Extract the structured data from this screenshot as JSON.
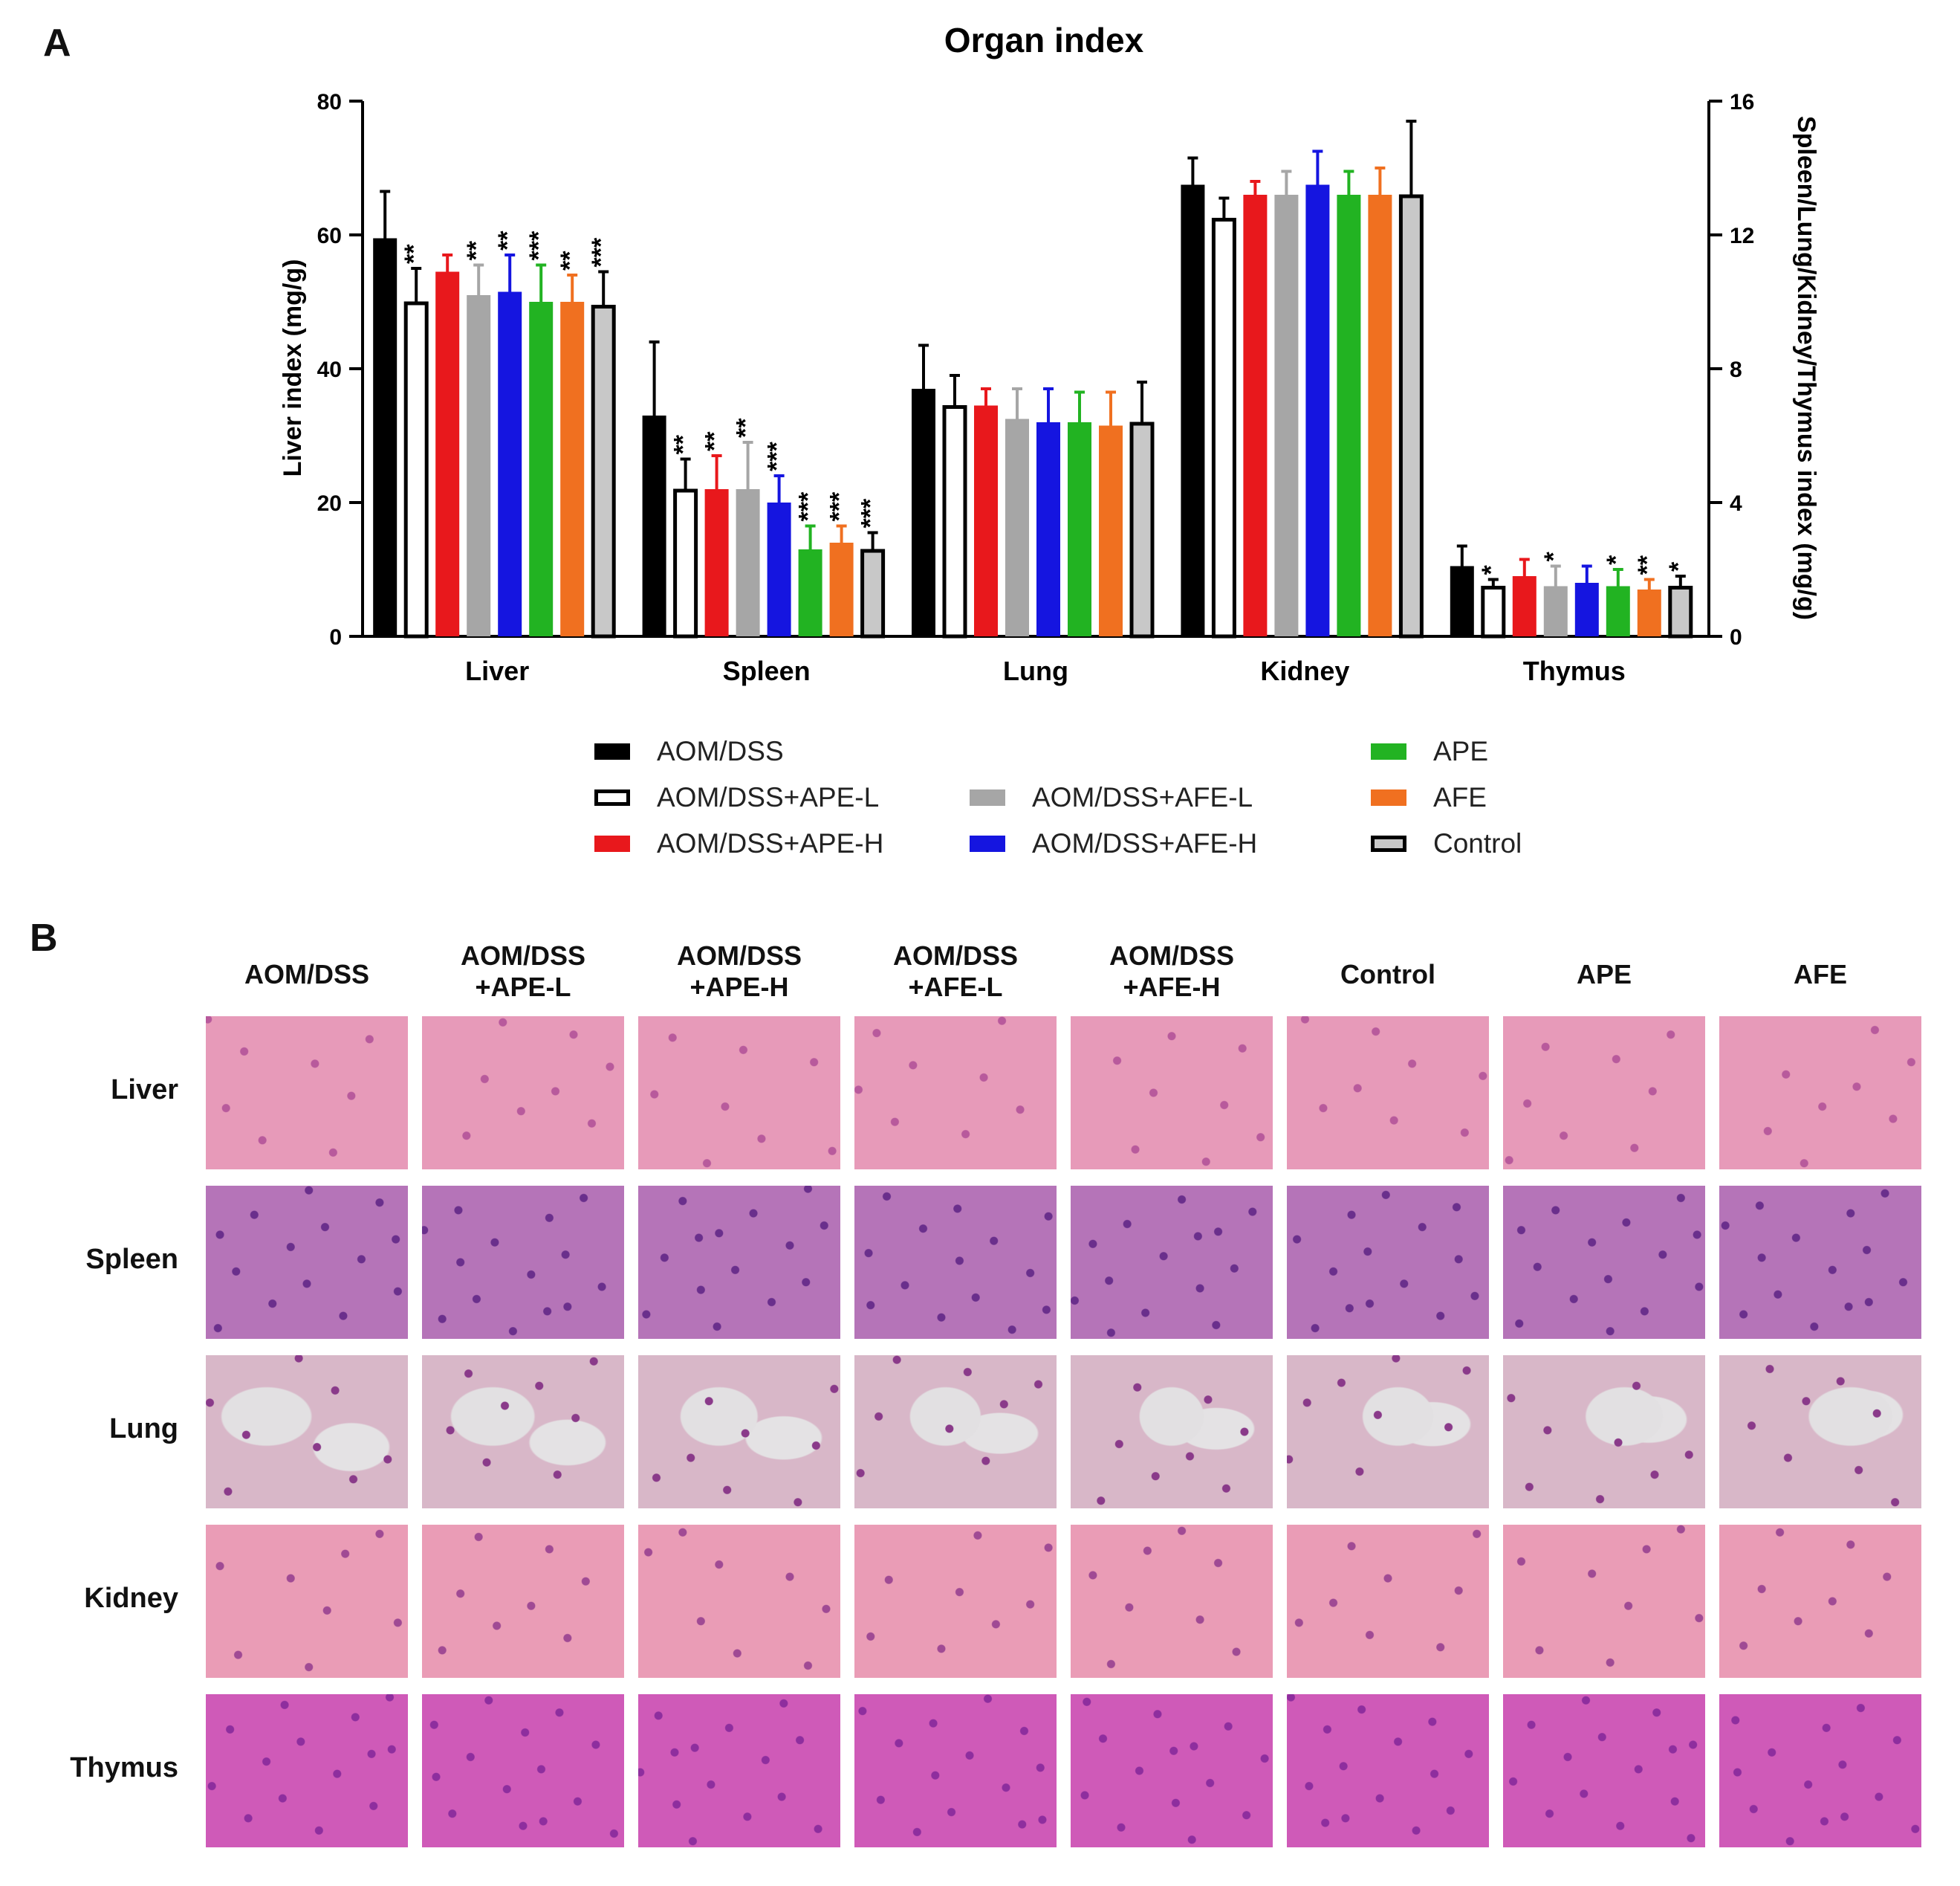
{
  "panel_a": {
    "letter": "A"
  },
  "panel_b": {
    "letter": "B",
    "columns": [
      "AOM/DSS",
      "AOM/DSS\n+APE-L",
      "AOM/DSS\n+APE-H",
      "AOM/DSS\n+AFE-L",
      "AOM/DSS\n+AFE-H",
      "Control",
      "APE",
      "AFE"
    ],
    "rows": [
      "Liver",
      "Spleen",
      "Lung",
      "Kidney",
      "Thymus"
    ],
    "tissue_colors": {
      "Liver": "#e79ab9",
      "Spleen": "#b574b8",
      "Lung": "#d8b7c8",
      "Kidney": "#ea9cb6",
      "Thymus": "#cf5ab8"
    },
    "nuclei_colors": {
      "Liver": "#b85a9c",
      "Spleen": "#6a2f8c",
      "Lung": "#8a3a8a",
      "Kidney": "#a04a94",
      "Thymus": "#8e2e9e"
    }
  },
  "chart_data": {
    "type": "bar",
    "title": "Organ index",
    "categories": [
      "Liver",
      "Spleen",
      "Lung",
      "Kidney",
      "Thymus"
    ],
    "ylabel": "Liver index (mg/g)",
    "y2label": "Spleen/Lung/Kidney/Thymus index (mg/g)",
    "ylim": [
      0,
      80
    ],
    "y2lim": [
      0,
      16
    ],
    "yticks": [
      0,
      20,
      40,
      60,
      80
    ],
    "y2ticks": [
      0,
      4,
      8,
      12,
      16
    ],
    "axis_note": "Liver on left axis; other organs on right axis",
    "series": [
      {
        "name": "AOM/DSS",
        "color": "#000000",
        "hollow": false,
        "values": [
          59.5,
          6.6,
          7.4,
          13.5,
          2.1
        ],
        "errors": [
          7.0,
          2.2,
          1.3,
          0.8,
          0.6
        ],
        "sig": [
          "",
          "",
          "",
          "",
          ""
        ]
      },
      {
        "name": "AOM/DSS+APE-L",
        "color": "#000000",
        "hollow": true,
        "values": [
          50.0,
          4.4,
          6.9,
          12.5,
          1.5
        ],
        "errors": [
          5.0,
          0.9,
          0.9,
          0.6,
          0.2
        ],
        "sig": [
          "**",
          "**",
          "",
          "",
          "*"
        ]
      },
      {
        "name": "AOM/DSS+APE-H",
        "color": "#e8181c",
        "hollow": false,
        "values": [
          54.5,
          4.4,
          6.9,
          13.2,
          1.8
        ],
        "errors": [
          2.5,
          1.0,
          0.5,
          0.4,
          0.5
        ],
        "sig": [
          "",
          "**",
          "",
          "",
          ""
        ]
      },
      {
        "name": "AOM/DSS+AFE-L",
        "color": "#a6a6a6",
        "hollow": false,
        "values": [
          51.0,
          4.4,
          6.5,
          13.2,
          1.5
        ],
        "errors": [
          4.5,
          1.4,
          0.9,
          0.7,
          0.6
        ],
        "sig": [
          "**",
          "**",
          "",
          "",
          "*"
        ]
      },
      {
        "name": "AOM/DSS+AFE-H",
        "color": "#1515e0",
        "hollow": false,
        "values": [
          51.5,
          4.0,
          6.4,
          13.5,
          1.6
        ],
        "errors": [
          5.5,
          0.8,
          1.0,
          1.0,
          0.5
        ],
        "sig": [
          "**",
          "***",
          "",
          "",
          ""
        ]
      },
      {
        "name": "APE",
        "color": "#22b322",
        "hollow": false,
        "values": [
          50.0,
          2.6,
          6.4,
          13.2,
          1.5
        ],
        "errors": [
          5.5,
          0.7,
          0.9,
          0.7,
          0.5
        ],
        "sig": [
          "***",
          "***",
          "",
          "",
          "*"
        ]
      },
      {
        "name": "AFE",
        "color": "#f07020",
        "hollow": false,
        "values": [
          50.0,
          2.8,
          6.3,
          13.2,
          1.4
        ],
        "errors": [
          4.0,
          0.5,
          1.0,
          0.8,
          0.3
        ],
        "sig": [
          "**",
          "***",
          "",
          "",
          "**"
        ]
      },
      {
        "name": "Control",
        "color": "#c8c8c8",
        "hollow": true,
        "values": [
          49.5,
          2.6,
          6.4,
          13.2,
          1.5
        ],
        "errors": [
          5.0,
          0.5,
          1.2,
          2.2,
          0.3
        ],
        "sig": [
          "***",
          "***",
          "",
          "",
          "*"
        ]
      }
    ],
    "legend": [
      [
        "AOM/DSS",
        "",
        "APE"
      ],
      [
        "AOM/DSS+APE-L",
        "AOM/DSS+AFE-L",
        "AFE"
      ],
      [
        "AOM/DSS+APE-H",
        "AOM/DSS+AFE-H",
        "Control"
      ]
    ]
  }
}
